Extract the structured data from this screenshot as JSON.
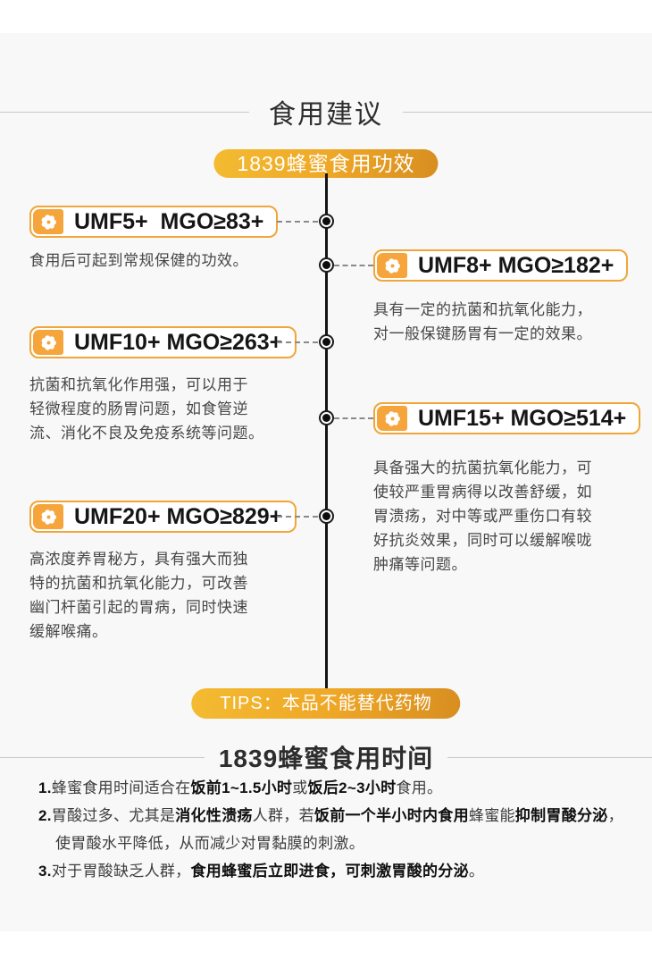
{
  "colors": {
    "accent_gold": "#f0a638",
    "pill_gradient_start": "#f3bb32",
    "pill_gradient_end": "#d88e20",
    "icon_background": "#f5a53b",
    "timeline_line": "#141414",
    "body_text": "#474747",
    "panel_background": "#f8f8f8"
  },
  "header": {
    "title": "食用建议"
  },
  "timeline": {
    "badge_label": "1839蜂蜜食用功效",
    "milestones": [
      {
        "label": "UMF5+  MGO≥83+",
        "side": "left",
        "description": "食用后可起到常规保健的功效。"
      },
      {
        "label": "UMF8+ MGO≥182+",
        "side": "right",
        "description": "具有一定的抗菌和抗氧化能力，\n对一般保键肠胃有一定的效果。"
      },
      {
        "label": "UMF10+ MGO≥263+",
        "side": "left",
        "description": "抗菌和抗氧化作用强，可以用于\n轻微程度的肠胃问题，如食管逆\n流、消化不良及免疫系统等问题。"
      },
      {
        "label": "UMF15+ MGO≥514+",
        "side": "right",
        "description": "具备强大的抗菌抗氧化能力，可\n使较严重胃病得以改善舒缓，如\n胃溃疡，对中等或严重伤口有较\n好抗炎效果，同时可以缓解喉咙\n肿痛等问题。"
      },
      {
        "label": "UMF20+ MGO≥829+",
        "side": "left",
        "description": "高浓度养胃秘方，具有强大而独\n特的抗菌和抗氧化能力，可改善\n幽门杆菌引起的胃病，同时快速\n缓解喉痛。"
      }
    ]
  },
  "tips": {
    "label": "TIPS：本品不能替代药物"
  },
  "usage_time": {
    "heading": "1839蜂蜜食用时间",
    "items": [
      {
        "segments": [
          {
            "text": "1.",
            "bold": true
          },
          {
            "text": "蜂蜜食用时间适合在",
            "bold": false
          },
          {
            "text": "饭前1~1.5小时",
            "bold": true
          },
          {
            "text": "或",
            "bold": false
          },
          {
            "text": "饭后2~3小时",
            "bold": true
          },
          {
            "text": "食用。",
            "bold": false
          }
        ]
      },
      {
        "segments": [
          {
            "text": "2.",
            "bold": true
          },
          {
            "text": "胃酸过多、尤其是",
            "bold": false
          },
          {
            "text": "消化性溃疡",
            "bold": true
          },
          {
            "text": "人群，若",
            "bold": false
          },
          {
            "text": "饭前一个半小时内食用",
            "bold": true
          },
          {
            "text": "蜂蜜能",
            "bold": false
          },
          {
            "text": "抑制胃酸分泌",
            "bold": true
          },
          {
            "text": "，使胃酸水平降低，从而减少对胃黏膜的刺激。",
            "bold": false
          }
        ]
      },
      {
        "segments": [
          {
            "text": "3.",
            "bold": true
          },
          {
            "text": "对于胃酸缺乏人群，",
            "bold": false
          },
          {
            "text": "食用蜂蜜后立即进食，可刺激胃酸的分泌",
            "bold": true
          },
          {
            "text": "。",
            "bold": false
          }
        ]
      }
    ]
  }
}
